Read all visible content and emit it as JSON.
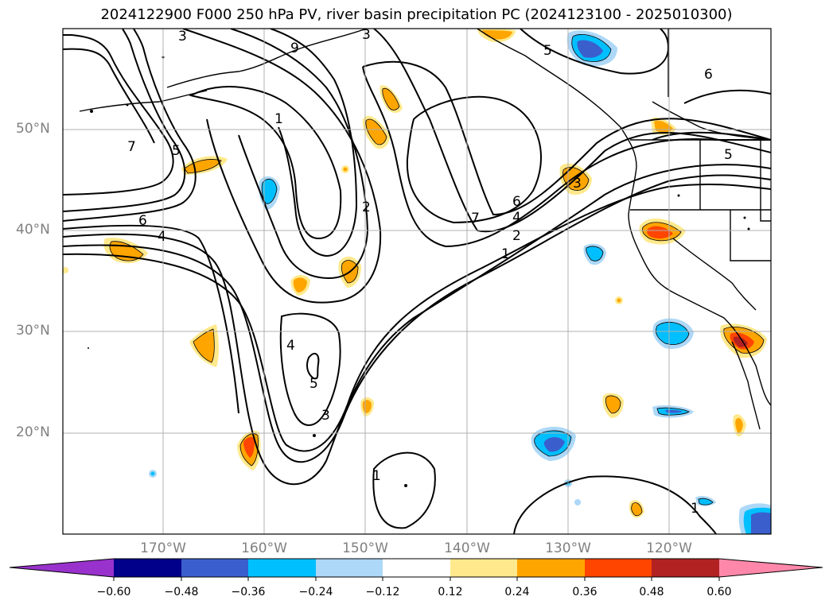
{
  "title": "2024122900 F000 250 hPa PV, river basin precipitation PC (2024123100 - 2025010300)",
  "map": {
    "lat_labels": [
      "50°N",
      "40°N",
      "30°N",
      "20°N"
    ],
    "lon_labels": [
      "170°W",
      "160°W",
      "150°W",
      "140°W",
      "130°W",
      "120°W"
    ],
    "contour_labels": [
      "3",
      "3",
      "9",
      "5",
      "6",
      "5",
      "1",
      "7",
      "5",
      "6",
      "4",
      "2",
      "7",
      "6",
      "4",
      "2",
      "1",
      "3",
      "4",
      "5",
      "3",
      "1",
      "1"
    ],
    "colors": {
      "grid": "#b0b0b0",
      "coast": "#000000",
      "contour": "#000000"
    }
  },
  "colorbar": {
    "ticks": [
      "−0.60",
      "−0.48",
      "−0.36",
      "−0.24",
      "−0.12",
      "0.12",
      "0.24",
      "0.36",
      "0.48",
      "0.60"
    ],
    "colors": [
      "#9932cc",
      "#00008b",
      "#3a5fcd",
      "#00bfff",
      "#add8f7",
      "#ffffff",
      "#ffe98c",
      "#ffa500",
      "#ff4500",
      "#b22222",
      "#ff88aa"
    ]
  }
}
